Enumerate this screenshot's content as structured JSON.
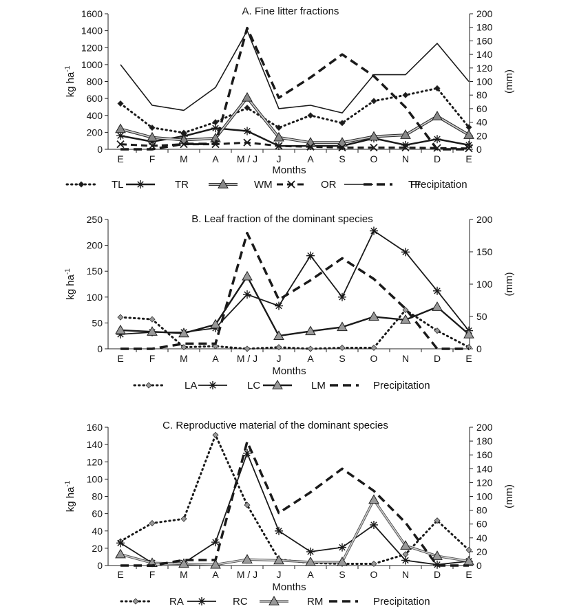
{
  "chart_data": [
    {
      "type": "line",
      "title": "A.  Fine litter fractions",
      "xlabel": "Months",
      "ylabel": "kg ha",
      "ylabel_sup": "-1",
      "y2label": "(mm)",
      "ylim": [
        0,
        1600
      ],
      "yticks": [
        0,
        200,
        400,
        600,
        800,
        1000,
        1200,
        1400,
        1600
      ],
      "y2lim": [
        0,
        200
      ],
      "y2ticks": [
        0,
        20,
        40,
        60,
        80,
        100,
        120,
        140,
        160,
        180,
        200
      ],
      "categories": [
        "E",
        "F",
        "M",
        "A",
        "M / J",
        "J",
        "A",
        "S",
        "O",
        "N",
        "D",
        "E"
      ],
      "legend_position": "bottom",
      "series": [
        {
          "name": "TL",
          "axis": "left",
          "style": "tl",
          "values": [
            540,
            255,
            195,
            320,
            490,
            255,
            400,
            310,
            570,
            640,
            720,
            260
          ]
        },
        {
          "name": "TR",
          "axis": "left",
          "style": "tr",
          "values": [
            160,
            90,
            155,
            250,
            215,
            40,
            40,
            40,
            130,
            50,
            120,
            50
          ]
        },
        {
          "name": "WM",
          "axis": "left",
          "style": "wm",
          "values": [
            240,
            140,
            110,
            130,
            610,
            140,
            80,
            80,
            150,
            170,
            390,
            170
          ]
        },
        {
          "name": "OR",
          "axis": "left",
          "style": "or",
          "values": [
            60,
            40,
            60,
            60,
            80,
            40,
            30,
            20,
            20,
            20,
            15,
            10
          ]
        },
        {
          "name": "TF",
          "axis": "left",
          "style": "tf",
          "values": [
            1000,
            520,
            460,
            730,
            1400,
            480,
            520,
            430,
            880,
            880,
            1250,
            800
          ]
        },
        {
          "name": "Precipitation",
          "axis": "right",
          "style": "precip",
          "values": [
            0,
            0,
            8,
            8,
            179,
            76,
            106,
            140,
            108,
            62,
            0,
            0
          ]
        }
      ]
    },
    {
      "type": "line",
      "title": "B.  Leaf fraction of the dominant species",
      "xlabel": "Months",
      "ylabel": "kg ha",
      "ylabel_sup": "-1",
      "y2label": "(mm)",
      "ylim": [
        0,
        250
      ],
      "yticks": [
        0,
        50,
        100,
        150,
        200,
        250
      ],
      "y2lim": [
        0,
        200
      ],
      "y2ticks": [
        0,
        50,
        100,
        150,
        200
      ],
      "categories": [
        "E",
        "F",
        "M",
        "A",
        "M / J",
        "J",
        "A",
        "S",
        "O",
        "N",
        "D",
        "E"
      ],
      "legend_position": "bottom",
      "series": [
        {
          "name": "LA",
          "axis": "left",
          "style": "la",
          "values": [
            61,
            57,
            3,
            5,
            0,
            3,
            0,
            2,
            2,
            75,
            35,
            3
          ]
        },
        {
          "name": "LC",
          "axis": "left",
          "style": "lc",
          "values": [
            28,
            32,
            32,
            40,
            105,
            83,
            180,
            100,
            228,
            187,
            112,
            35
          ]
        },
        {
          "name": "LM",
          "axis": "left",
          "style": "lm",
          "values": [
            36,
            33,
            30,
            47,
            140,
            25,
            34,
            42,
            62,
            56,
            81,
            28
          ]
        },
        {
          "name": "Precipitation",
          "axis": "right",
          "style": "precip",
          "values": [
            0,
            0,
            8,
            8,
            179,
            76,
            106,
            140,
            108,
            62,
            0,
            0
          ]
        }
      ]
    },
    {
      "type": "line",
      "title": "C.  Reproductive material of the dominant species",
      "xlabel": "Months",
      "ylabel": "kg ha",
      "ylabel_sup": "-1",
      "y2label": "(mm)",
      "ylim": [
        0,
        160
      ],
      "yticks": [
        0,
        20,
        40,
        60,
        80,
        100,
        120,
        140,
        160
      ],
      "y2lim": [
        0,
        200
      ],
      "y2ticks": [
        0,
        20,
        40,
        60,
        80,
        100,
        120,
        140,
        160,
        180,
        200
      ],
      "categories": [
        "E",
        "F",
        "M",
        "A",
        "M / J",
        "J",
        "A",
        "S",
        "O",
        "N",
        "D",
        "E"
      ],
      "legend_position": "bottom",
      "series": [
        {
          "name": "RA",
          "axis": "left",
          "style": "ra",
          "values": [
            28,
            49,
            54,
            151,
            70,
            7,
            3,
            2,
            2,
            13,
            52,
            18
          ]
        },
        {
          "name": "RC",
          "axis": "left",
          "style": "rc",
          "values": [
            26,
            3,
            3,
            27,
            130,
            40,
            16,
            21,
            47,
            6,
            1,
            5
          ]
        },
        {
          "name": "RM",
          "axis": "left",
          "style": "rm",
          "values": [
            13,
            3,
            2,
            1,
            7,
            6,
            4,
            4,
            76,
            23,
            11,
            5
          ]
        },
        {
          "name": "Precipitation",
          "axis": "right",
          "style": "precip",
          "values": [
            0,
            0,
            8,
            8,
            179,
            76,
            106,
            140,
            108,
            62,
            0,
            0
          ]
        }
      ]
    }
  ]
}
